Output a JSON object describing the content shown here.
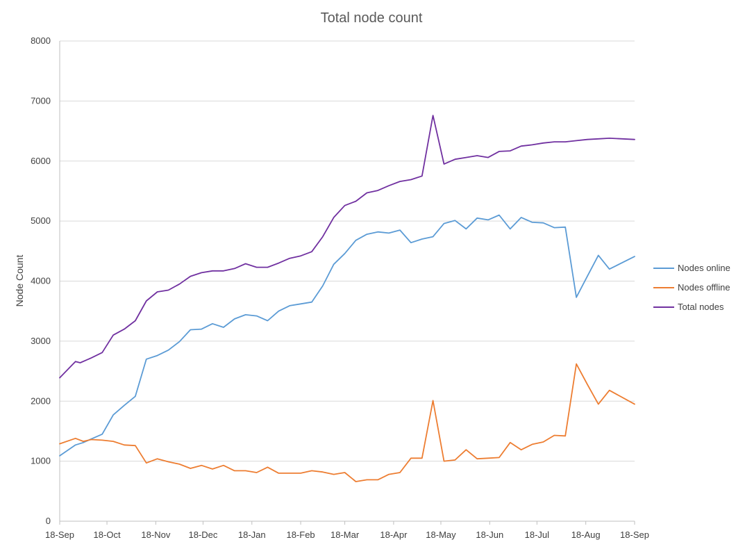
{
  "chart_data": {
    "type": "line",
    "title": "Total node count",
    "xlabel": "",
    "ylabel": "Node Count",
    "ylim": [
      0,
      8000
    ],
    "yticks": [
      0,
      1000,
      2000,
      3000,
      4000,
      5000,
      6000,
      7000,
      8000
    ],
    "xrange": [
      "2017-09-18",
      "2018-09-18"
    ],
    "xtick_labels": [
      "18-Sep",
      "18-Oct",
      "18-Nov",
      "18-Dec",
      "18-Jan",
      "18-Feb",
      "18-Mar",
      "18-Apr",
      "18-May",
      "18-Jun",
      "18-Jul",
      "18-Aug",
      "18-Sep"
    ],
    "xtick_dates": [
      "2017-09-18",
      "2017-10-18",
      "2017-11-18",
      "2017-12-18",
      "2018-01-18",
      "2018-02-18",
      "2018-03-18",
      "2018-04-18",
      "2018-05-18",
      "2018-06-18",
      "2018-07-18",
      "2018-08-18",
      "2018-09-18"
    ],
    "grid": true,
    "legend_position": "right",
    "series": [
      {
        "name": "Nodes online",
        "color": "#5b9bd5",
        "points": [
          [
            "2017-09-18",
            1090
          ],
          [
            "2017-09-28",
            1270
          ],
          [
            "2017-10-03",
            1310
          ],
          [
            "2017-10-08",
            1370
          ],
          [
            "2017-10-15",
            1450
          ],
          [
            "2017-10-22",
            1770
          ],
          [
            "2017-10-29",
            1930
          ],
          [
            "2017-11-05",
            2080
          ],
          [
            "2017-11-12",
            2700
          ],
          [
            "2017-11-19",
            2760
          ],
          [
            "2017-11-26",
            2850
          ],
          [
            "2017-12-03",
            2990
          ],
          [
            "2017-12-10",
            3190
          ],
          [
            "2017-12-17",
            3200
          ],
          [
            "2017-12-24",
            3290
          ],
          [
            "2017-12-31",
            3230
          ],
          [
            "2018-01-07",
            3370
          ],
          [
            "2018-01-14",
            3440
          ],
          [
            "2018-01-21",
            3420
          ],
          [
            "2018-01-28",
            3340
          ],
          [
            "2018-02-04",
            3500
          ],
          [
            "2018-02-11",
            3590
          ],
          [
            "2018-02-18",
            3620
          ],
          [
            "2018-02-25",
            3650
          ],
          [
            "2018-03-04",
            3920
          ],
          [
            "2018-03-11",
            4280
          ],
          [
            "2018-03-18",
            4460
          ],
          [
            "2018-03-25",
            4680
          ],
          [
            "2018-04-01",
            4780
          ],
          [
            "2018-04-08",
            4820
          ],
          [
            "2018-04-15",
            4800
          ],
          [
            "2018-04-22",
            4850
          ],
          [
            "2018-04-29",
            4640
          ],
          [
            "2018-05-06",
            4700
          ],
          [
            "2018-05-13",
            4740
          ],
          [
            "2018-05-20",
            4960
          ],
          [
            "2018-05-27",
            5010
          ],
          [
            "2018-06-03",
            4870
          ],
          [
            "2018-06-10",
            5050
          ],
          [
            "2018-06-17",
            5020
          ],
          [
            "2018-06-24",
            5100
          ],
          [
            "2018-07-01",
            4870
          ],
          [
            "2018-07-08",
            5060
          ],
          [
            "2018-07-15",
            4980
          ],
          [
            "2018-07-22",
            4970
          ],
          [
            "2018-07-29",
            4890
          ],
          [
            "2018-08-05",
            4900
          ],
          [
            "2018-08-12",
            3730
          ],
          [
            "2018-08-19",
            4080
          ],
          [
            "2018-08-26",
            4430
          ],
          [
            "2018-09-02",
            4200
          ],
          [
            "2018-09-18",
            4410
          ]
        ]
      },
      {
        "name": "Nodes offline",
        "color": "#ed7d31",
        "points": [
          [
            "2017-09-18",
            1290
          ],
          [
            "2017-09-28",
            1380
          ],
          [
            "2017-10-03",
            1330
          ],
          [
            "2017-10-08",
            1360
          ],
          [
            "2017-10-15",
            1350
          ],
          [
            "2017-10-22",
            1330
          ],
          [
            "2017-10-29",
            1270
          ],
          [
            "2017-11-05",
            1260
          ],
          [
            "2017-11-12",
            970
          ],
          [
            "2017-11-19",
            1040
          ],
          [
            "2017-11-26",
            990
          ],
          [
            "2017-12-03",
            950
          ],
          [
            "2017-12-10",
            880
          ],
          [
            "2017-12-17",
            930
          ],
          [
            "2017-12-24",
            870
          ],
          [
            "2017-12-31",
            930
          ],
          [
            "2018-01-07",
            840
          ],
          [
            "2018-01-14",
            840
          ],
          [
            "2018-01-21",
            810
          ],
          [
            "2018-01-28",
            900
          ],
          [
            "2018-02-04",
            800
          ],
          [
            "2018-02-11",
            800
          ],
          [
            "2018-02-18",
            800
          ],
          [
            "2018-02-25",
            840
          ],
          [
            "2018-03-04",
            820
          ],
          [
            "2018-03-11",
            780
          ],
          [
            "2018-03-18",
            810
          ],
          [
            "2018-03-25",
            660
          ],
          [
            "2018-04-01",
            690
          ],
          [
            "2018-04-08",
            690
          ],
          [
            "2018-04-15",
            780
          ],
          [
            "2018-04-22",
            810
          ],
          [
            "2018-04-29",
            1050
          ],
          [
            "2018-05-06",
            1050
          ],
          [
            "2018-05-13",
            2010
          ],
          [
            "2018-05-20",
            1000
          ],
          [
            "2018-05-27",
            1020
          ],
          [
            "2018-06-03",
            1190
          ],
          [
            "2018-06-10",
            1040
          ],
          [
            "2018-06-17",
            1050
          ],
          [
            "2018-06-24",
            1060
          ],
          [
            "2018-07-01",
            1310
          ],
          [
            "2018-07-08",
            1190
          ],
          [
            "2018-07-15",
            1280
          ],
          [
            "2018-07-22",
            1320
          ],
          [
            "2018-07-29",
            1430
          ],
          [
            "2018-08-05",
            1420
          ],
          [
            "2018-08-12",
            2620
          ],
          [
            "2018-08-19",
            2280
          ],
          [
            "2018-08-26",
            1950
          ],
          [
            "2018-09-02",
            2180
          ],
          [
            "2018-09-18",
            1950
          ]
        ]
      },
      {
        "name": "Total nodes",
        "color": "#7030a0",
        "points": [
          [
            "2017-09-18",
            2390
          ],
          [
            "2017-09-28",
            2660
          ],
          [
            "2017-10-01",
            2640
          ],
          [
            "2017-10-08",
            2720
          ],
          [
            "2017-10-15",
            2810
          ],
          [
            "2017-10-22",
            3100
          ],
          [
            "2017-10-29",
            3200
          ],
          [
            "2017-11-05",
            3340
          ],
          [
            "2017-11-12",
            3670
          ],
          [
            "2017-11-19",
            3820
          ],
          [
            "2017-11-26",
            3850
          ],
          [
            "2017-12-03",
            3950
          ],
          [
            "2017-12-10",
            4080
          ],
          [
            "2017-12-17",
            4140
          ],
          [
            "2017-12-24",
            4170
          ],
          [
            "2017-12-31",
            4170
          ],
          [
            "2018-01-07",
            4210
          ],
          [
            "2018-01-14",
            4290
          ],
          [
            "2018-01-21",
            4230
          ],
          [
            "2018-01-28",
            4230
          ],
          [
            "2018-02-04",
            4300
          ],
          [
            "2018-02-11",
            4380
          ],
          [
            "2018-02-18",
            4420
          ],
          [
            "2018-02-25",
            4490
          ],
          [
            "2018-03-04",
            4740
          ],
          [
            "2018-03-11",
            5060
          ],
          [
            "2018-03-18",
            5260
          ],
          [
            "2018-03-25",
            5330
          ],
          [
            "2018-04-01",
            5470
          ],
          [
            "2018-04-08",
            5510
          ],
          [
            "2018-04-15",
            5590
          ],
          [
            "2018-04-22",
            5660
          ],
          [
            "2018-04-29",
            5690
          ],
          [
            "2018-05-06",
            5750
          ],
          [
            "2018-05-13",
            6760
          ],
          [
            "2018-05-20",
            5950
          ],
          [
            "2018-05-27",
            6030
          ],
          [
            "2018-06-03",
            6060
          ],
          [
            "2018-06-10",
            6090
          ],
          [
            "2018-06-17",
            6060
          ],
          [
            "2018-06-24",
            6160
          ],
          [
            "2018-07-01",
            6170
          ],
          [
            "2018-07-08",
            6250
          ],
          [
            "2018-07-15",
            6270
          ],
          [
            "2018-07-22",
            6300
          ],
          [
            "2018-07-29",
            6320
          ],
          [
            "2018-08-05",
            6320
          ],
          [
            "2018-08-12",
            6340
          ],
          [
            "2018-08-19",
            6360
          ],
          [
            "2018-08-26",
            6370
          ],
          [
            "2018-09-02",
            6380
          ],
          [
            "2018-09-18",
            6360
          ]
        ]
      }
    ]
  }
}
